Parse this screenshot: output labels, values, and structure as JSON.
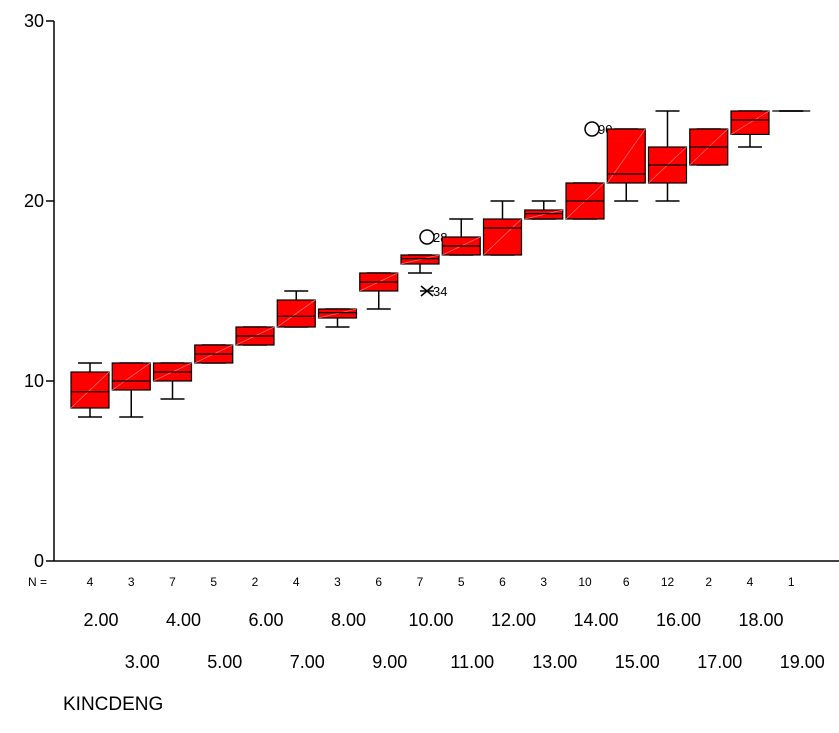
{
  "chart_data": {
    "type": "boxplot",
    "xlabel": "KINCDENG",
    "ylabel": "",
    "ylim": [
      0,
      30
    ],
    "yticks": [
      0,
      10,
      20,
      30
    ],
    "n_label": "N =",
    "colors": {
      "box_fill": "#ff0000",
      "stroke": "#000000"
    },
    "groups": [
      {
        "category": "2.00",
        "n": "4",
        "min": 8,
        "q1": 8.5,
        "median": 9.4,
        "q3": 10.5,
        "max": 11
      },
      {
        "category": "3.00",
        "n": "3",
        "min": 8,
        "q1": 9.5,
        "median": 10,
        "q3": 11,
        "max": 11
      },
      {
        "category": "4.00",
        "n": "7",
        "min": 9,
        "q1": 10,
        "median": 10.5,
        "q3": 11,
        "max": 11
      },
      {
        "category": "5.00",
        "n": "5",
        "min": 11,
        "q1": 11,
        "median": 11.5,
        "q3": 12,
        "max": 12
      },
      {
        "category": "6.00",
        "n": "2",
        "min": 12,
        "q1": 12,
        "median": 12.5,
        "q3": 13,
        "max": 13
      },
      {
        "category": "7.00",
        "n": "4",
        "min": 13,
        "q1": 13,
        "median": 13.6,
        "q3": 14.5,
        "max": 15
      },
      {
        "category": "8.00",
        "n": "3",
        "min": 13,
        "q1": 13.5,
        "median": 13.8,
        "q3": 14,
        "max": 14
      },
      {
        "category": "9.00",
        "n": "6",
        "min": 14,
        "q1": 15,
        "median": 15.5,
        "q3": 16,
        "max": 16
      },
      {
        "category": "10.00",
        "n": "7",
        "min": 16,
        "q1": 16.5,
        "median": 16.8,
        "q3": 17,
        "max": 17,
        "outliers": [
          {
            "value": 18,
            "label": "28",
            "symbol": "circle"
          },
          {
            "value": 15,
            "label": "34",
            "symbol": "star"
          }
        ]
      },
      {
        "category": "11.00",
        "n": "5",
        "min": 17,
        "q1": 17,
        "median": 17.5,
        "q3": 18,
        "max": 19
      },
      {
        "category": "12.00",
        "n": "6",
        "min": 17,
        "q1": 17,
        "median": 18.5,
        "q3": 19,
        "max": 20
      },
      {
        "category": "13.00",
        "n": "3",
        "min": 19,
        "q1": 19,
        "median": 19.3,
        "q3": 19.5,
        "max": 20
      },
      {
        "category": "14.00",
        "n": "10",
        "min": 19,
        "q1": 19,
        "median": 20,
        "q3": 21,
        "max": 21,
        "outliers": [
          {
            "value": 24,
            "label": "90",
            "symbol": "circle"
          }
        ]
      },
      {
        "category": "15.00",
        "n": "6",
        "min": 20,
        "q1": 21,
        "median": 21.5,
        "q3": 24,
        "max": 24
      },
      {
        "category": "16.00",
        "n": "12",
        "min": 20,
        "q1": 21,
        "median": 22,
        "q3": 23,
        "max": 25
      },
      {
        "category": "17.00",
        "n": "2",
        "min": 22,
        "q1": 22,
        "median": 23,
        "q3": 24,
        "max": 24
      },
      {
        "category": "18.00",
        "n": "4",
        "min": 23,
        "q1": 23.7,
        "median": 24.5,
        "q3": 25,
        "max": 25
      },
      {
        "category": "19.00",
        "n": "1",
        "min": 25,
        "q1": 25,
        "median": 25,
        "q3": 25,
        "max": 25
      }
    ]
  }
}
